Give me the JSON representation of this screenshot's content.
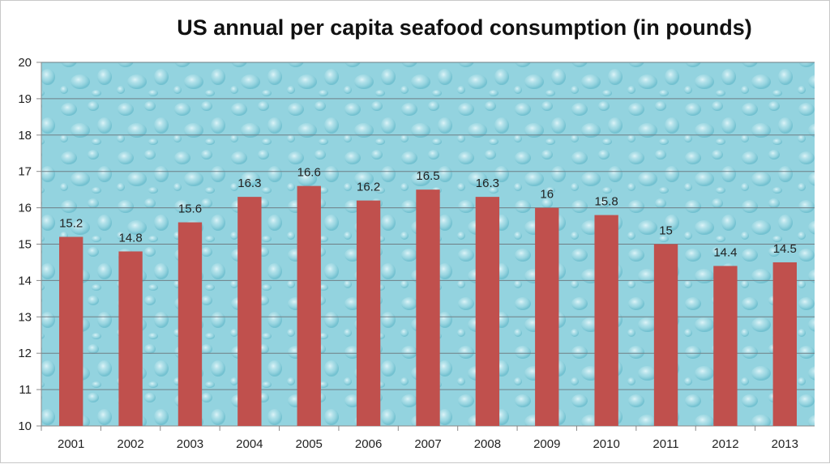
{
  "chart_data": {
    "type": "bar",
    "title": "US annual per capita seafood consumption (in pounds)",
    "xlabel": "",
    "ylabel": "",
    "categories": [
      "2001",
      "2002",
      "2003",
      "2004",
      "2005",
      "2006",
      "2007",
      "2008",
      "2009",
      "2010",
      "2011",
      "2012",
      "2013"
    ],
    "values": [
      15.2,
      14.8,
      15.6,
      16.3,
      16.6,
      16.2,
      16.5,
      16.3,
      16,
      15.8,
      15,
      14.4,
      14.5
    ],
    "data_labels": [
      "15.2",
      "14.8",
      "15.6",
      "16.3",
      "16.6",
      "16.2",
      "16.5",
      "16.3",
      "16",
      "15.8",
      "15",
      "14.4",
      "14.5"
    ],
    "ylim": [
      10,
      20
    ],
    "yticks": [
      "10",
      "11",
      "12",
      "13",
      "14",
      "15",
      "16",
      "17",
      "18",
      "19",
      "20"
    ],
    "grid": true,
    "legend": "none",
    "colors": {
      "bar": "#c0504d",
      "plot_background": "#8fd0dc",
      "gridline": "#6f7f86"
    }
  }
}
